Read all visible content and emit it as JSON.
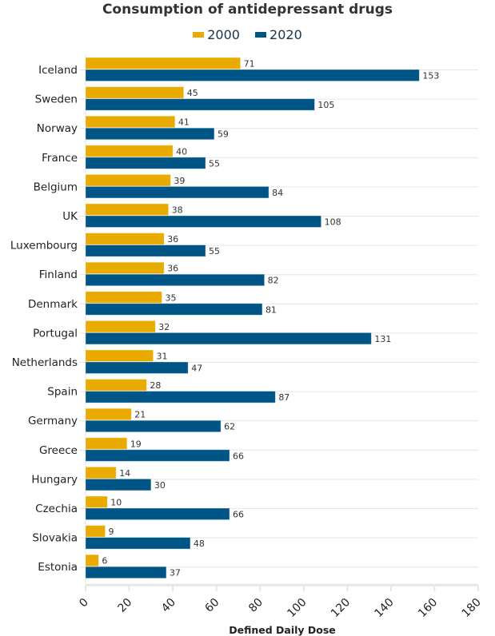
{
  "chart_data": {
    "type": "bar",
    "orientation": "horizontal",
    "title": "Consumption of antidepressant drugs",
    "xlabel": "Defined Daily Dose",
    "ylabel": "",
    "xlim": [
      0,
      180
    ],
    "x_ticks": [
      0,
      20,
      40,
      60,
      80,
      100,
      120,
      140,
      160,
      180
    ],
    "grid": true,
    "legend_position": "top-center",
    "categories": [
      "Iceland",
      "Sweden",
      "Norway",
      "France",
      "Belgium",
      "UK",
      "Luxembourg",
      "Finland",
      "Denmark",
      "Portugal",
      "Netherlands",
      "Spain",
      "Germany",
      "Greece",
      "Hungary",
      "Czechia",
      "Slovakia",
      "Estonia"
    ],
    "series": [
      {
        "name": "2000",
        "color": "#eaab00",
        "values": [
          71,
          45,
          41,
          40,
          39,
          38,
          36,
          36,
          35,
          32,
          31,
          28,
          21,
          19,
          14,
          10,
          9,
          6
        ]
      },
      {
        "name": "2020",
        "color": "#005587",
        "values": [
          153,
          105,
          59,
          55,
          84,
          108,
          55,
          82,
          81,
          131,
          47,
          87,
          62,
          66,
          30,
          66,
          48,
          37
        ]
      }
    ]
  }
}
